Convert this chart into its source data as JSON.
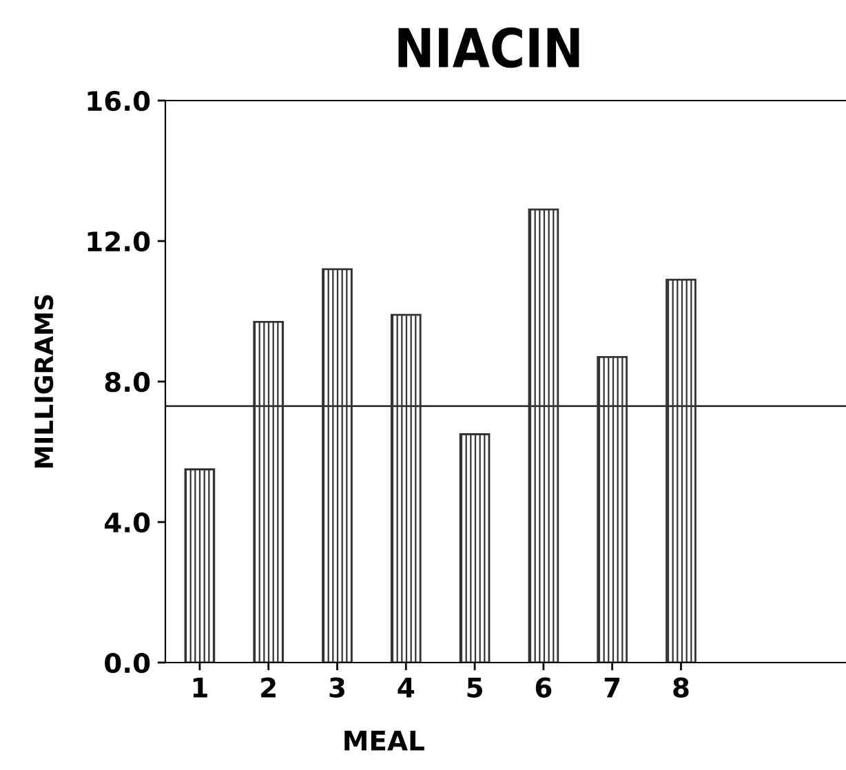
{
  "chart_data": {
    "type": "bar",
    "title": "NIACIN",
    "xlabel": "MEAL",
    "ylabel": "MILLIGRAMS",
    "categories": [
      "1",
      "2",
      "3",
      "4",
      "5",
      "6",
      "7",
      "8"
    ],
    "values": [
      5.5,
      9.7,
      11.2,
      9.9,
      6.5,
      12.9,
      8.7,
      10.9
    ],
    "color": "#333333",
    "ylim": [
      0,
      16
    ],
    "yticks": [
      {
        "value": 0,
        "label": "0.0"
      },
      {
        "value": 4,
        "label": "4.0"
      },
      {
        "value": 8,
        "label": "8.0"
      },
      {
        "value": 12,
        "label": "12.0"
      },
      {
        "value": 16,
        "label": "16.0"
      }
    ],
    "ref_lines": [
      {
        "axis": "y",
        "value": 7.3,
        "color": "#333333"
      }
    ],
    "grid": false,
    "legend": false
  }
}
